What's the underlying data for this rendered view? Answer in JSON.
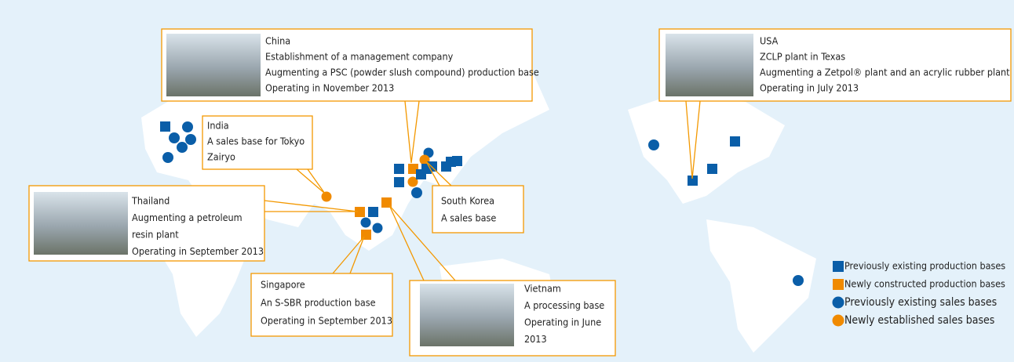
{
  "callouts": [
    {
      "id": "china",
      "lines": [
        "China",
        "Establishment of a management company",
        "Augmenting a PSC (powder slush compound) production base",
        "Operating in November 2013"
      ]
    },
    {
      "id": "india",
      "lines": [
        "India",
        "A sales base for Tokyo",
        "Zairyo"
      ]
    },
    {
      "id": "thailand",
      "lines": [
        "Thailand",
        "Augmenting a petroleum",
        "resin plant",
        "Operating in September 2013"
      ]
    },
    {
      "id": "singapore",
      "lines": [
        "Singapore",
        "An S-SBR production base",
        "Operating in September 2013"
      ]
    },
    {
      "id": "vietnam",
      "lines": [
        "Vietnam",
        "A processing base",
        "Operating in June",
        "2013"
      ]
    },
    {
      "id": "south-korea",
      "lines": [
        "South Korea",
        "A sales base"
      ]
    },
    {
      "id": "usa",
      "lines": [
        "USA",
        "ZCLP plant in Texas",
        "Augmenting a Zetpol® plant and an acrylic rubber plant",
        "Operating in July 2013"
      ]
    }
  ],
  "legend": [
    "Previously existing production bases",
    "Newly constructed production bases",
    "Previously existing sales bases",
    "Newly established sales bases"
  ]
}
